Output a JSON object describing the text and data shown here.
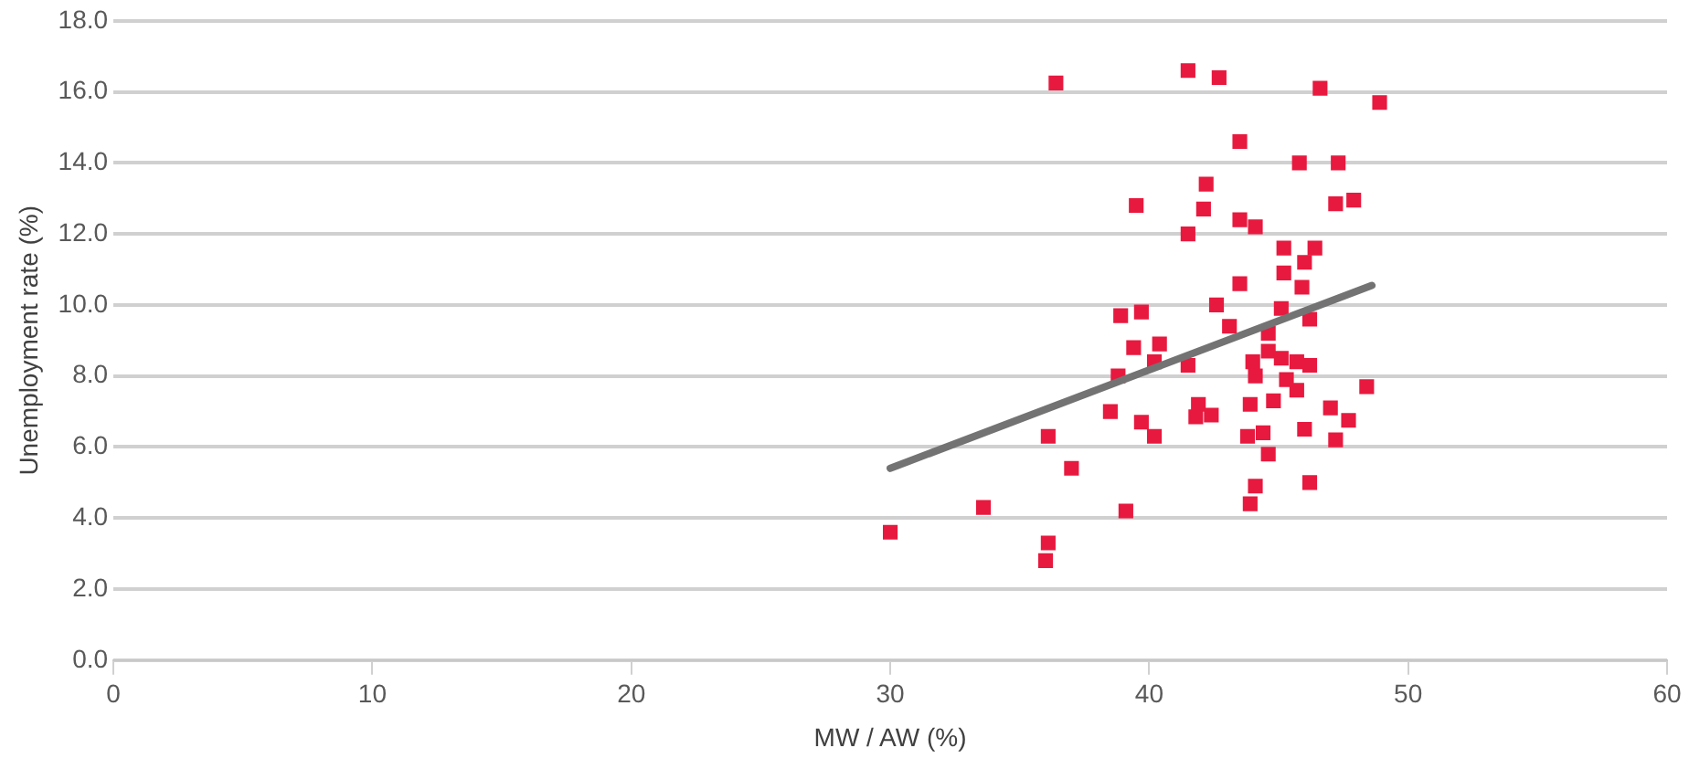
{
  "chart_data": {
    "type": "scatter",
    "xlabel": "MW / AW (%)",
    "ylabel": "Unemployment rate (%)",
    "xlim": [
      0,
      60
    ],
    "xticks": [
      0,
      10,
      20,
      30,
      40,
      50,
      60
    ],
    "ylim": [
      0,
      18
    ],
    "yticks": [
      {
        "value": 0,
        "label": "0.0"
      },
      {
        "value": 2,
        "label": "2.0"
      },
      {
        "value": 4,
        "label": "4.0"
      },
      {
        "value": 6,
        "label": "6.0"
      },
      {
        "value": 8,
        "label": "8.0"
      },
      {
        "value": 10,
        "label": "10.0"
      },
      {
        "value": 12,
        "label": "12.0"
      },
      {
        "value": 14,
        "label": "14.0"
      },
      {
        "value": 16,
        "label": "16.0"
      },
      {
        "value": 18,
        "label": "18.0"
      }
    ],
    "grid": "y",
    "legend": false,
    "marker": "square",
    "series": [
      {
        "color": "#e8193f",
        "x": [
          36.4,
          41.5,
          42.7,
          46.6,
          48.9,
          43.5,
          45.8,
          47.3,
          42.2,
          39.5,
          42.1,
          47.2,
          47.9,
          43.5,
          44.1,
          41.5,
          45.2,
          46.4,
          46.0,
          45.2,
          43.5,
          45.9,
          42.6,
          45.1,
          46.2,
          43.1,
          44.6,
          38.9,
          39.7,
          39.4,
          40.4,
          38.8,
          40.2,
          41.5,
          44.0,
          44.6,
          45.1,
          45.7,
          46.2,
          44.1,
          45.3,
          45.7,
          48.4,
          38.5,
          39.7,
          40.2,
          41.9,
          42.4,
          41.8,
          43.9,
          44.8,
          47.0,
          47.7,
          43.8,
          44.4,
          46.0,
          47.2,
          44.6,
          44.1,
          43.9,
          46.2,
          36.1,
          37.0,
          33.6,
          30.0,
          36.1,
          36.0,
          39.1
        ],
        "values": [
          16.25,
          16.6,
          16.4,
          16.1,
          15.7,
          14.6,
          14.0,
          14.0,
          13.4,
          12.8,
          12.7,
          12.85,
          12.95,
          12.4,
          12.2,
          12.0,
          11.6,
          11.6,
          11.2,
          10.9,
          10.6,
          10.5,
          10.0,
          9.9,
          9.6,
          9.4,
          9.2,
          9.7,
          9.8,
          8.8,
          8.9,
          8.0,
          8.4,
          8.3,
          8.4,
          8.7,
          8.5,
          8.4,
          8.3,
          8.0,
          7.9,
          7.6,
          7.7,
          7.0,
          6.7,
          6.3,
          7.2,
          6.9,
          6.85,
          7.2,
          7.3,
          7.1,
          6.75,
          6.3,
          6.4,
          6.5,
          6.2,
          5.8,
          4.9,
          4.4,
          5.0,
          6.3,
          5.4,
          4.3,
          3.6,
          3.3,
          2.8,
          4.2
        ]
      },
      {
        "type": "line",
        "color": "#737373",
        "marker": "none",
        "x": [
          30.0,
          48.6
        ],
        "values": [
          5.4,
          10.55
        ]
      }
    ]
  }
}
